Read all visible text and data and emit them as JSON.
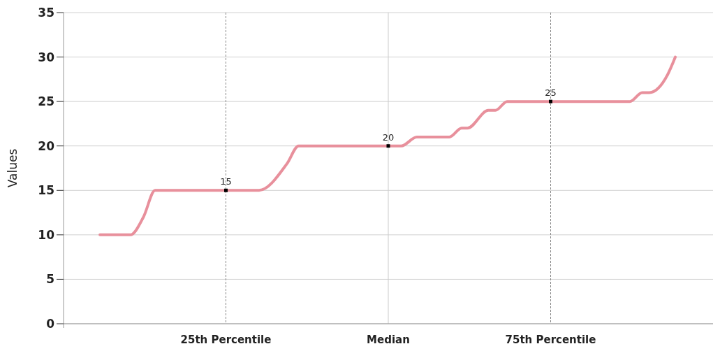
{
  "chart_data": {
    "type": "line",
    "ylabel": "Values",
    "xlim": [
      0,
      100
    ],
    "xticks": [
      {
        "value": 25,
        "label": "25th Percentile"
      },
      {
        "value": 50,
        "label": "Median"
      },
      {
        "value": 75,
        "label": "75th Percentile"
      }
    ],
    "ylim": [
      0,
      35
    ],
    "yticks": [
      0,
      5,
      10,
      15,
      20,
      25,
      30,
      35
    ],
    "grid": "y",
    "ref_lines": [
      {
        "axis": "x",
        "value": 25,
        "label": null,
        "color": "#888888",
        "line_style": "dashed"
      },
      {
        "axis": "x",
        "value": 50,
        "label": null,
        "color": "#cccccc",
        "line_style": "solid"
      },
      {
        "axis": "x",
        "value": 75,
        "label": null,
        "color": "#888888",
        "line_style": "dashed"
      }
    ],
    "series": [
      {
        "color": "#e8909c",
        "marker": "none",
        "x": [
          5.6,
          10.3,
          12.3,
          14.1,
          20,
          25,
          30.1,
          34.4,
          36.2,
          40,
          45,
          50,
          52,
          54.4,
          59.4,
          61.3,
          62.2,
          65.4,
          66.5,
          68.3,
          75,
          80,
          87.2,
          89.1,
          90.2,
          93,
          94.2
        ],
        "values": [
          10,
          10,
          12,
          15,
          15,
          15,
          15,
          18,
          20,
          20,
          20,
          20,
          20,
          21,
          21,
          22,
          22,
          24,
          24,
          25,
          25,
          25,
          25,
          26,
          26,
          28,
          30
        ]
      },
      {
        "type": "scatter",
        "color": "#000000",
        "marker": "square",
        "x": [
          25,
          50,
          75
        ],
        "values": [
          15,
          20,
          25
        ],
        "value_labels": [
          "15",
          "20",
          "25"
        ]
      }
    ]
  }
}
